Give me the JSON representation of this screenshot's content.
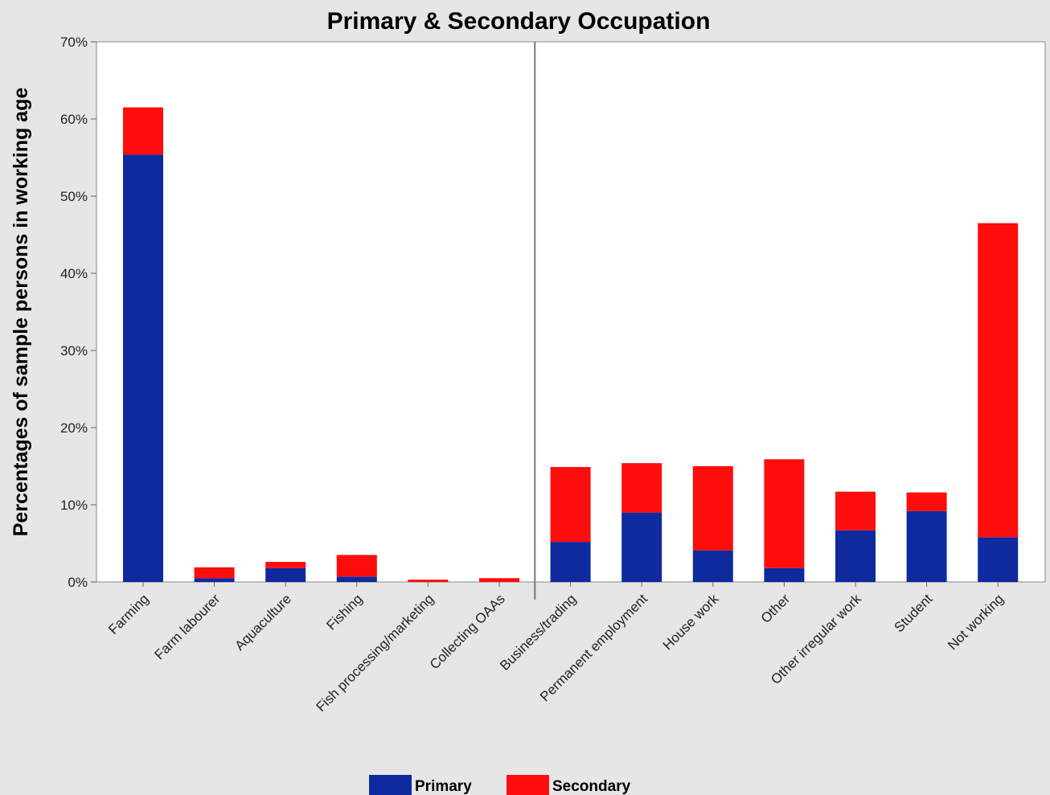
{
  "chart_data": {
    "type": "bar",
    "stacked": true,
    "title": "Primary & Secondary Occupation",
    "xlabel": "",
    "ylabel": "Percentages of sample persons in working age",
    "ylim": [
      0,
      70
    ],
    "yticks": [
      0,
      10,
      20,
      30,
      40,
      50,
      60,
      70
    ],
    "ytick_labels": [
      "0%",
      "10%",
      "20%",
      "30%",
      "40%",
      "50%",
      "60%",
      "70%"
    ],
    "categories": [
      "Farming",
      "Farm labourer",
      "Aquaculture",
      "Fishing",
      "Fish processing/marketing",
      "Collecting OAAs",
      "Business/trading",
      "Permanent employment",
      "House work",
      "Other",
      "Other irregular work",
      "Student",
      "Not working"
    ],
    "divider_after_index": 5,
    "series": [
      {
        "name": "Primary",
        "color": "#0f2a9e",
        "values": [
          55.4,
          0.5,
          1.8,
          0.7,
          0.0,
          0.0,
          5.2,
          9.0,
          4.1,
          1.8,
          6.7,
          9.2,
          5.8
        ]
      },
      {
        "name": "Secondary",
        "color": "#ff0c0c",
        "values": [
          6.1,
          1.4,
          0.8,
          2.8,
          0.3,
          0.5,
          9.7,
          6.4,
          10.9,
          14.1,
          5.0,
          2.4,
          40.7
        ]
      }
    ],
    "legend": {
      "position": "bottom"
    },
    "grid": false
  }
}
